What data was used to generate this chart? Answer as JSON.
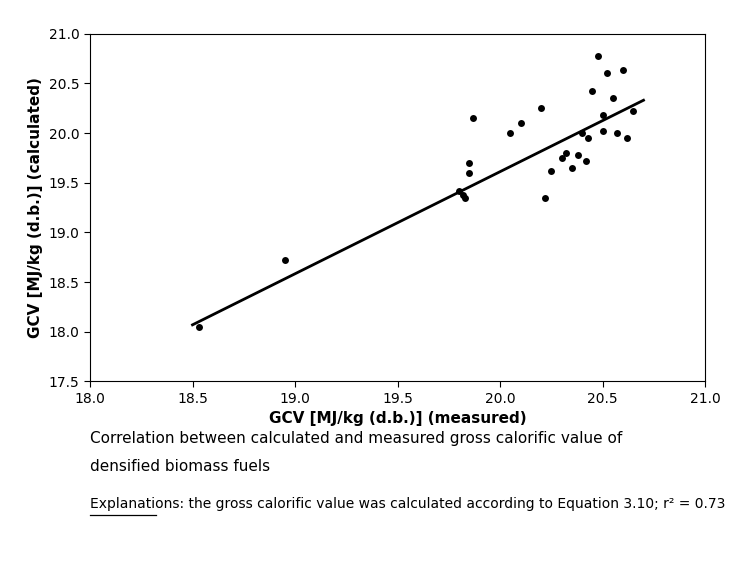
{
  "scatter_x": [
    18.53,
    18.95,
    19.8,
    19.82,
    19.83,
    19.85,
    19.85,
    19.87,
    20.05,
    20.1,
    20.2,
    20.22,
    20.25,
    20.3,
    20.32,
    20.35,
    20.38,
    20.4,
    20.42,
    20.43,
    20.45,
    20.48,
    20.5,
    20.5,
    20.52,
    20.55,
    20.57,
    20.6,
    20.62,
    20.65
  ],
  "scatter_y": [
    18.05,
    18.72,
    19.42,
    19.38,
    19.35,
    19.7,
    19.6,
    20.15,
    20.0,
    20.1,
    20.25,
    19.35,
    19.62,
    19.75,
    19.8,
    19.65,
    19.78,
    20.0,
    19.72,
    19.95,
    20.42,
    20.78,
    20.02,
    20.18,
    20.6,
    20.35,
    20.0,
    20.63,
    19.95,
    20.22
  ],
  "line_x": [
    18.5,
    20.7
  ],
  "line_y": [
    18.07,
    20.33
  ],
  "xlabel": "GCV [MJ/kg (d.b.)] (measured)",
  "ylabel": "GCV [MJ/kg (d.b.)] (calculated)",
  "xlim": [
    18.0,
    21.0
  ],
  "ylim": [
    17.5,
    21.0
  ],
  "xticks": [
    18.0,
    18.5,
    19.0,
    19.5,
    20.0,
    20.5,
    21.0
  ],
  "yticks": [
    17.5,
    18.0,
    18.5,
    19.0,
    19.5,
    20.0,
    20.5,
    21.0
  ],
  "caption_line1": "Correlation between calculated and measured gross calorific value of",
  "caption_line2": "densified biomass fuels",
  "explanation_label": "Explanations",
  "explanation_text": ": the gross calorific value was calculated according to Equation 3.10; r² = 0.73",
  "marker_color": "black",
  "marker_size": 5,
  "line_color": "black",
  "line_width": 2,
  "bg_color": "white",
  "xlabel_fontsize": 11,
  "ylabel_fontsize": 11,
  "tick_fontsize": 10,
  "caption_fontsize": 11,
  "explanation_fontsize": 10
}
